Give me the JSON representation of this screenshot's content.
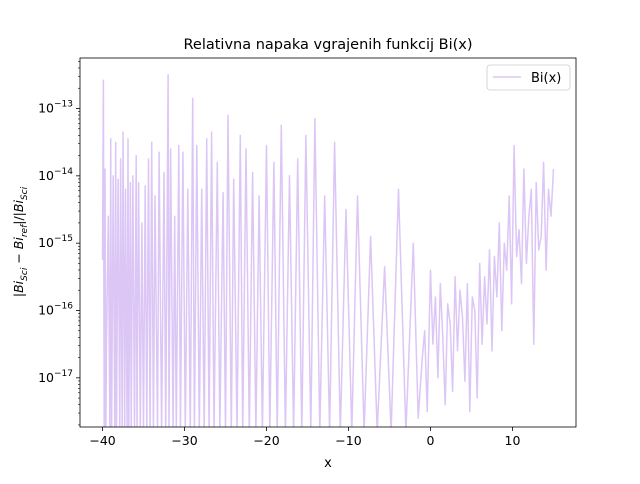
{
  "chart_data": {
    "type": "line",
    "title": "Relativna napaka vgrajenih funkcij Bi(x)",
    "xlabel": "x",
    "ylabel_parts": {
      "bar1": "|",
      "bi1": "Bi",
      "sub1": "Sci",
      "minus": " − ",
      "bi2": "Bi",
      "sub2": "ref",
      "bar2": "|/|",
      "bi3": "Bi",
      "sub3": "Sci"
    },
    "xlim": [
      -42.75,
      17.75
    ],
    "ylim_log10": [
      -17.73,
      -12.25
    ],
    "y_scale": "log",
    "xticks": [
      {
        "value": -40,
        "label": "−40"
      },
      {
        "value": -30,
        "label": "−30"
      },
      {
        "value": -20,
        "label": "−20"
      },
      {
        "value": -10,
        "label": "−10"
      },
      {
        "value": 0,
        "label": "0"
      },
      {
        "value": 10,
        "label": "10"
      }
    ],
    "yticks": [
      {
        "exp": -17,
        "base": "10",
        "sup": "−17"
      },
      {
        "exp": -16,
        "base": "10",
        "sup": "−16"
      },
      {
        "exp": -15,
        "base": "10",
        "sup": "−15"
      },
      {
        "exp": -14,
        "base": "10",
        "sup": "−14"
      },
      {
        "exp": -13,
        "base": "10",
        "sup": "−13"
      }
    ],
    "legend": {
      "position": "upper right",
      "entries": [
        {
          "label": "Bi(x)",
          "color": "#dcc6f6"
        }
      ]
    },
    "series": [
      {
        "name": "Bi(x)",
        "color": "#dcc6f6",
        "x": [
          -40,
          -39.9,
          -39.8,
          -39.7,
          -39.6,
          -39.5,
          -39.3,
          -39.1,
          -39.0,
          -38.9,
          -38.7,
          -38.5,
          -38.4,
          -38.3,
          -38.1,
          -37.9,
          -37.8,
          -37.6,
          -37.5,
          -37.3,
          -37.2,
          -37.0,
          -36.9,
          -36.8,
          -36.6,
          -36.5,
          -36.3,
          -36.1,
          -35.9,
          -35.8,
          -35.6,
          -35.4,
          -35.2,
          -35.0,
          -34.8,
          -34.6,
          -34.4,
          -34.2,
          -34.0,
          -33.8,
          -33.6,
          -33.3,
          -33.1,
          -32.8,
          -32.5,
          -32.3,
          -32.0,
          -31.9,
          -31.7,
          -31.4,
          -31.2,
          -31.0,
          -30.7,
          -30.5,
          -30.2,
          -29.9,
          -29.6,
          -29.3,
          -29.0,
          -28.8,
          -28.5,
          -28.2,
          -27.9,
          -27.6,
          -27.3,
          -27.0,
          -26.7,
          -26.4,
          -26.0,
          -25.7,
          -25.3,
          -25.0,
          -24.7,
          -24.3,
          -24.0,
          -23.6,
          -23.2,
          -22.9,
          -22.5,
          -22.1,
          -21.7,
          -21.3,
          -20.9,
          -20.5,
          -20.0,
          -19.6,
          -19.1,
          -18.7,
          -18.2,
          -17.7,
          -17.2,
          -16.7,
          -16.2,
          -15.7,
          -15.2,
          -14.6,
          -14.1,
          -13.5,
          -12.9,
          -12.3,
          -11.7,
          -11.0,
          -10.3,
          -9.6,
          -8.9,
          -8.1,
          -7.3,
          -6.5,
          -5.6,
          -4.8,
          -3.9,
          -3.0,
          -2.1,
          -1.5,
          -1.0,
          -0.7,
          -0.4,
          0.0,
          0.3,
          0.6,
          0.9,
          1.2,
          1.5,
          1.8,
          2.1,
          2.4,
          2.7,
          3.0,
          3.3,
          3.6,
          3.9,
          4.2,
          4.5,
          4.8,
          5.1,
          5.4,
          5.7,
          6.0,
          6.3,
          6.6,
          6.9,
          7.2,
          7.5,
          7.8,
          8.1,
          8.4,
          8.7,
          9.0,
          9.3,
          9.6,
          9.9,
          10.2,
          10.5,
          10.8,
          11.1,
          11.4,
          11.7,
          12.0,
          12.3,
          12.6,
          12.9,
          13.2,
          13.5,
          13.8,
          14.1,
          14.4,
          14.7,
          15.0
        ],
        "y_log10": [
          -15.25,
          -12.58,
          -17.8,
          -13.9,
          -17.8,
          -16.35,
          -14.6,
          -17.8,
          -13.45,
          -17.8,
          -14.0,
          -17.8,
          -13.5,
          -17.8,
          -14.05,
          -17.8,
          -13.75,
          -17.8,
          -13.35,
          -17.8,
          -14.2,
          -17.8,
          -13.45,
          -17.8,
          -14.1,
          -17.8,
          -14.0,
          -17.8,
          -13.7,
          -17.8,
          -14.1,
          -17.8,
          -14.7,
          -17.8,
          -14.15,
          -17.8,
          -13.75,
          -17.8,
          -13.5,
          -17.8,
          -14.3,
          -17.8,
          -13.65,
          -17.8,
          -13.95,
          -17.8,
          -12.5,
          -17.8,
          -13.6,
          -17.8,
          -14.6,
          -17.8,
          -13.55,
          -17.8,
          -13.65,
          -17.8,
          -14.2,
          -17.8,
          -12.85,
          -17.8,
          -13.55,
          -17.8,
          -14.2,
          -17.8,
          -13.45,
          -17.8,
          -13.35,
          -17.8,
          -13.8,
          -17.8,
          -14.25,
          -17.8,
          -13.1,
          -17.8,
          -14.05,
          -17.8,
          -13.4,
          -17.8,
          -13.6,
          -17.8,
          -13.95,
          -17.8,
          -14.3,
          -17.8,
          -13.55,
          -17.8,
          -13.8,
          -17.8,
          -13.25,
          -17.8,
          -14.0,
          -17.8,
          -13.75,
          -17.8,
          -13.4,
          -17.8,
          -13.15,
          -17.8,
          -14.3,
          -17.8,
          -13.5,
          -17.8,
          -14.5,
          -17.8,
          -14.3,
          -17.8,
          -14.9,
          -17.8,
          -15.35,
          -17.8,
          -14.2,
          -17.8,
          -15.0,
          -17.6,
          -16.7,
          -16.3,
          -17.5,
          -15.4,
          -16.5,
          -15.8,
          -17.0,
          -15.6,
          -16.4,
          -17.4,
          -15.9,
          -16.2,
          -17.2,
          -15.5,
          -16.6,
          -15.7,
          -16.1,
          -17.05,
          -15.6,
          -17.5,
          -15.8,
          -16.0,
          -17.3,
          -15.3,
          -16.5,
          -15.5,
          -16.2,
          -15.1,
          -16.6,
          -15.2,
          -15.8,
          -14.7,
          -16.3,
          -15.0,
          -15.4,
          -14.3,
          -15.9,
          -13.55,
          -15.2,
          -14.8,
          -15.6,
          -13.9,
          -15.3,
          -14.6,
          -14.2,
          -16.5,
          -14.1,
          -15.1,
          -14.9,
          -13.8,
          -15.4,
          -14.2,
          -14.6,
          -13.9
        ]
      }
    ]
  }
}
